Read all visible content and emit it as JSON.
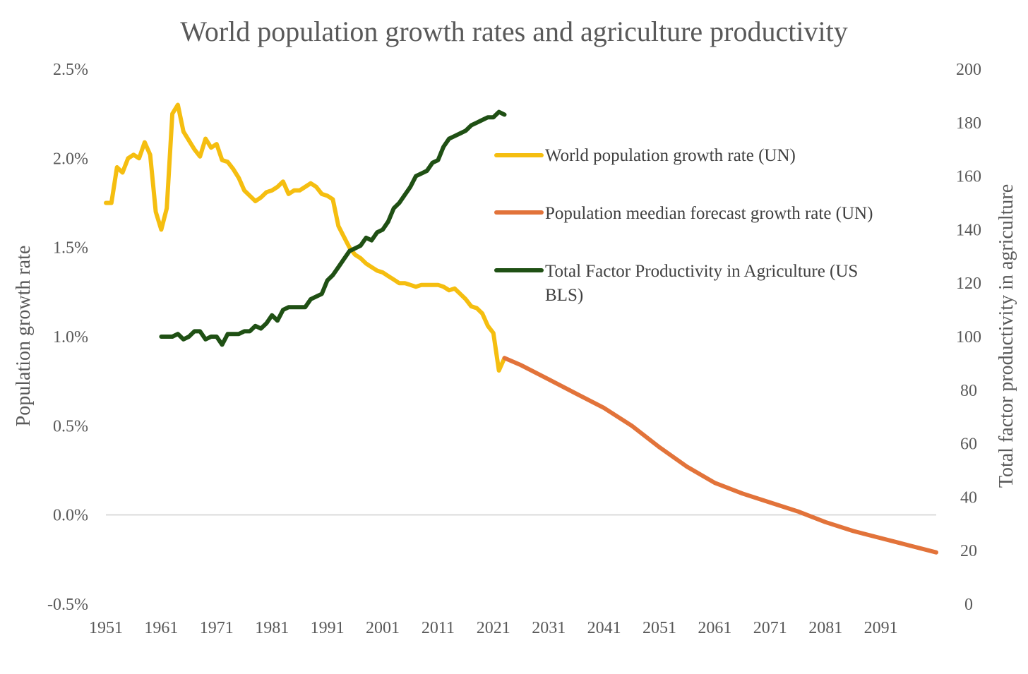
{
  "colors": {
    "population": "#F5BE10",
    "forecast": "#E2733A",
    "tfp": "#1F5014",
    "text": "#595959",
    "zero_line": "#D0D0D0"
  },
  "chart_data": {
    "type": "line",
    "title": "World population growth rates and agriculture productivity",
    "ylabel": "Population growth rate",
    "y2label": "Total factor productivity in agriculture",
    "xlabel": "",
    "x_ticks": [
      "1951",
      "1961",
      "1971",
      "1981",
      "1991",
      "2001",
      "2011",
      "2021",
      "2031",
      "2041",
      "2051",
      "2061",
      "2071",
      "2081",
      "2091"
    ],
    "x_range": [
      1951,
      2101
    ],
    "ylim": [
      -0.5,
      2.5
    ],
    "y_ticks": [
      "2.5%",
      "2.0%",
      "1.5%",
      "1.0%",
      "0.5%",
      "0.0%",
      "-0.5%"
    ],
    "y2lim": [
      0,
      200
    ],
    "y2_ticks": [
      "200",
      "180",
      "160",
      "140",
      "120",
      "100",
      "80",
      "60",
      "40",
      "20",
      "0"
    ],
    "grid": false,
    "legend_position": "right",
    "series": [
      {
        "name": "World population growth rate (UN)",
        "axis": "left",
        "x": [
          1951,
          1952,
          1953,
          1954,
          1955,
          1956,
          1957,
          1958,
          1959,
          1960,
          1961,
          1962,
          1963,
          1964,
          1965,
          1966,
          1967,
          1968,
          1969,
          1970,
          1971,
          1972,
          1973,
          1974,
          1975,
          1976,
          1977,
          1978,
          1979,
          1980,
          1981,
          1982,
          1983,
          1984,
          1985,
          1986,
          1987,
          1988,
          1989,
          1990,
          1991,
          1992,
          1993,
          1994,
          1995,
          1996,
          1997,
          1998,
          1999,
          2000,
          2001,
          2002,
          2003,
          2004,
          2005,
          2006,
          2007,
          2008,
          2009,
          2010,
          2011,
          2012,
          2013,
          2014,
          2015,
          2016,
          2017,
          2018,
          2019,
          2020,
          2021,
          2022,
          2023
        ],
        "values": [
          1.75,
          1.75,
          1.95,
          1.92,
          2.0,
          2.02,
          2.0,
          2.09,
          2.02,
          1.7,
          1.6,
          1.72,
          2.25,
          2.3,
          2.15,
          2.1,
          2.05,
          2.01,
          2.11,
          2.06,
          2.08,
          1.99,
          1.98,
          1.94,
          1.89,
          1.82,
          1.79,
          1.76,
          1.78,
          1.81,
          1.82,
          1.84,
          1.87,
          1.8,
          1.82,
          1.82,
          1.84,
          1.86,
          1.84,
          1.8,
          1.79,
          1.77,
          1.62,
          1.56,
          1.5,
          1.46,
          1.44,
          1.41,
          1.39,
          1.37,
          1.36,
          1.34,
          1.32,
          1.3,
          1.3,
          1.29,
          1.28,
          1.29,
          1.29,
          1.29,
          1.29,
          1.28,
          1.26,
          1.27,
          1.24,
          1.21,
          1.17,
          1.16,
          1.13,
          1.06,
          1.02,
          0.81,
          0.88
        ]
      },
      {
        "name": "Population meedian forecast growth rate (UN)",
        "axis": "left",
        "x": [
          2023,
          2026,
          2031,
          2036,
          2041,
          2046,
          2051,
          2056,
          2061,
          2066,
          2071,
          2076,
          2081,
          2086,
          2091,
          2096,
          2101
        ],
        "values": [
          0.88,
          0.84,
          0.76,
          0.68,
          0.6,
          0.5,
          0.38,
          0.27,
          0.18,
          0.12,
          0.07,
          0.02,
          -0.04,
          -0.09,
          -0.13,
          -0.17,
          -0.21
        ]
      },
      {
        "name": "Total Factor Productivity in Agriculture (US BLS)",
        "axis": "right",
        "x": [
          1961,
          1962,
          1963,
          1964,
          1965,
          1966,
          1967,
          1968,
          1969,
          1970,
          1971,
          1972,
          1973,
          1974,
          1975,
          1976,
          1977,
          1978,
          1979,
          1980,
          1981,
          1982,
          1983,
          1984,
          1985,
          1986,
          1987,
          1988,
          1989,
          1990,
          1991,
          1992,
          1993,
          1994,
          1995,
          1996,
          1997,
          1998,
          1999,
          2000,
          2001,
          2002,
          2003,
          2004,
          2005,
          2006,
          2007,
          2008,
          2009,
          2010,
          2011,
          2012,
          2013,
          2014,
          2015,
          2016,
          2017,
          2018,
          2019,
          2020,
          2021,
          2022,
          2023
        ],
        "values": [
          100,
          100,
          100,
          101,
          99,
          100,
          102,
          102,
          99,
          100,
          100,
          97,
          101,
          101,
          101,
          102,
          102,
          104,
          103,
          105,
          108,
          106,
          110,
          111,
          111,
          111,
          111,
          114,
          115,
          116,
          121,
          123,
          126,
          129,
          132,
          133,
          134,
          137,
          136,
          139,
          140,
          143,
          148,
          150,
          153,
          156,
          160,
          161,
          162,
          165,
          166,
          171,
          174,
          175,
          176,
          177,
          179,
          180,
          181,
          182,
          182,
          184,
          183
        ]
      }
    ]
  }
}
